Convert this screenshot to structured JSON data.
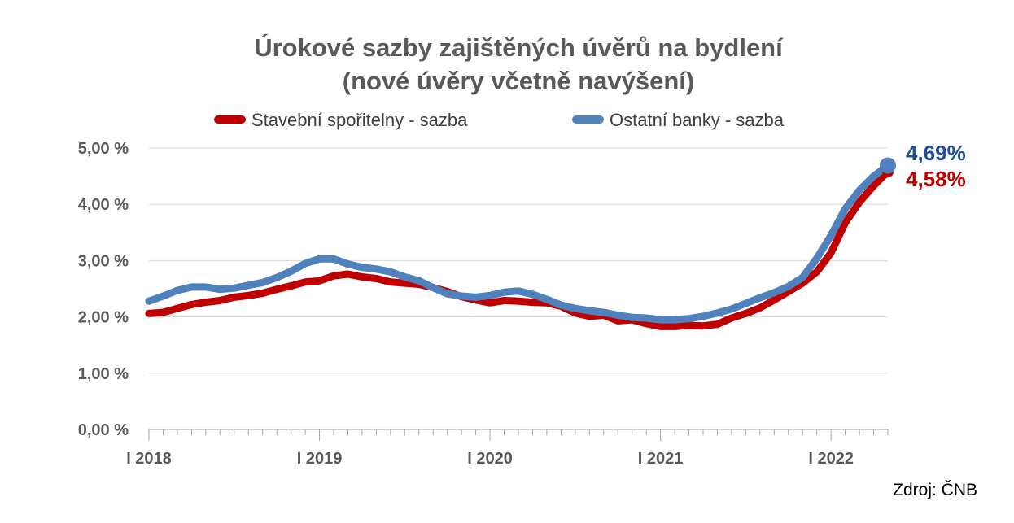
{
  "chart_data": {
    "type": "line",
    "title_line1": "Úrokové sazby zajištěných úvěrů na bydlení",
    "title_line2": "(nové úvěry včetně navýšení)",
    "source": "Zdroj: ČNB",
    "x_tick_labels": [
      "I 2018",
      "I 2019",
      "I 2020",
      "I 2021",
      "I 2022"
    ],
    "y_tick_labels": [
      "0,00 %",
      "1,00 %",
      "2,00 %",
      "3,00 %",
      "4,00 %",
      "5,00 %"
    ],
    "ylim": [
      0,
      5
    ],
    "grid": true,
    "legend_position": "top",
    "series": [
      {
        "name": "Stavební spořitelny - sazba",
        "color": "#C00000",
        "end_label": "4,58%",
        "values": [
          2.06,
          2.08,
          2.15,
          2.22,
          2.26,
          2.29,
          2.35,
          2.38,
          2.42,
          2.49,
          2.55,
          2.62,
          2.64,
          2.73,
          2.76,
          2.71,
          2.68,
          2.62,
          2.6,
          2.58,
          2.52,
          2.45,
          2.36,
          2.3,
          2.25,
          2.29,
          2.28,
          2.26,
          2.25,
          2.19,
          2.07,
          2.01,
          2.03,
          1.93,
          1.95,
          1.88,
          1.83,
          1.83,
          1.85,
          1.84,
          1.87,
          1.98,
          2.06,
          2.16,
          2.3,
          2.45,
          2.6,
          2.8,
          3.14,
          3.67,
          4.04,
          4.33,
          4.58
        ]
      },
      {
        "name": "Ostatní banky - sazba",
        "color": "#4F81BD",
        "end_label": "4,69%",
        "values": [
          2.28,
          2.37,
          2.47,
          2.53,
          2.53,
          2.49,
          2.51,
          2.56,
          2.61,
          2.7,
          2.81,
          2.95,
          3.03,
          3.03,
          2.94,
          2.88,
          2.85,
          2.8,
          2.71,
          2.64,
          2.52,
          2.41,
          2.37,
          2.35,
          2.38,
          2.44,
          2.46,
          2.4,
          2.31,
          2.21,
          2.15,
          2.11,
          2.08,
          2.03,
          1.99,
          1.98,
          1.95,
          1.95,
          1.97,
          2.01,
          2.07,
          2.14,
          2.24,
          2.34,
          2.43,
          2.54,
          2.7,
          3.04,
          3.45,
          3.92,
          4.25,
          4.5,
          4.69
        ]
      }
    ]
  }
}
